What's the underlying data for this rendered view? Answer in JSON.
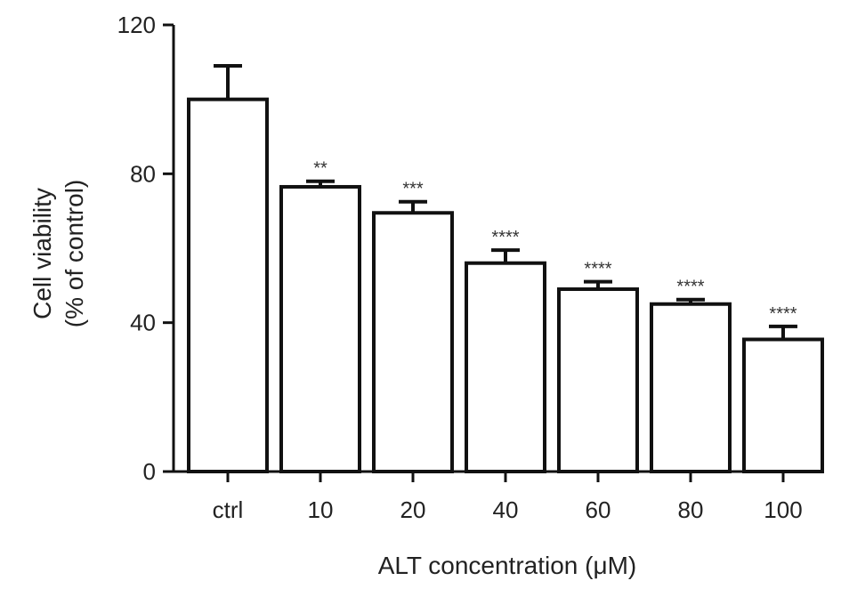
{
  "chart_data": {
    "type": "bar",
    "categories": [
      "ctrl",
      "10",
      "20",
      "40",
      "60",
      "80",
      "100"
    ],
    "values": [
      100,
      76.5,
      69.5,
      56,
      49,
      45,
      35.5
    ],
    "errors": [
      9,
      1.5,
      3,
      3.5,
      2,
      1.2,
      3.5
    ],
    "significance": [
      "",
      "**",
      "***",
      "****",
      "****",
      "****",
      "****"
    ],
    "xlabel": "ALT concentration (μM)",
    "ylabel_line1": "Cell viability",
    "ylabel_line2": "(% of control)",
    "ylim": [
      0,
      120
    ],
    "yticks": [
      0,
      40,
      80,
      120
    ],
    "grid": false,
    "colors": {
      "bar_fill": "#ffffff",
      "bar_stroke": "#111111",
      "text": "#222222"
    }
  }
}
